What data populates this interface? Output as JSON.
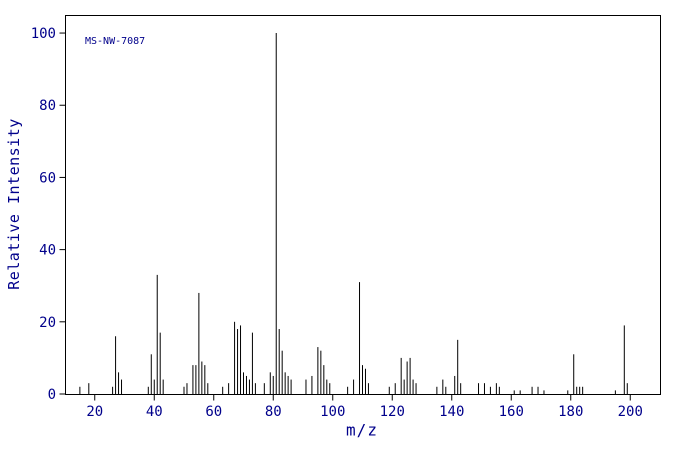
{
  "chart_data": {
    "type": "bar",
    "subtype": "mass-spectrum",
    "annotation": "MS-NW-7087",
    "xlabel": "m/z",
    "ylabel": "Relative Intensity",
    "xlim": [
      10,
      210
    ],
    "ylim": [
      0,
      105
    ],
    "x_ticks": [
      20,
      40,
      60,
      80,
      100,
      120,
      140,
      160,
      180,
      200
    ],
    "y_ticks": [
      0,
      20,
      40,
      60,
      80,
      100
    ],
    "grid": false,
    "legend": false,
    "axis_color": "#000000",
    "text_color": "#00008b",
    "peak_color": "#000000",
    "peaks": [
      [
        15,
        2
      ],
      [
        18,
        3
      ],
      [
        26,
        2
      ],
      [
        27,
        16
      ],
      [
        28,
        6
      ],
      [
        29,
        4
      ],
      [
        38,
        2
      ],
      [
        39,
        11
      ],
      [
        40,
        4
      ],
      [
        41,
        33
      ],
      [
        42,
        17
      ],
      [
        43,
        4
      ],
      [
        50,
        2
      ],
      [
        51,
        3
      ],
      [
        53,
        8
      ],
      [
        54,
        8
      ],
      [
        55,
        28
      ],
      [
        56,
        9
      ],
      [
        57,
        8
      ],
      [
        58,
        3
      ],
      [
        63,
        2
      ],
      [
        65,
        3
      ],
      [
        67,
        20
      ],
      [
        68,
        18
      ],
      [
        69,
        19
      ],
      [
        70,
        6
      ],
      [
        71,
        5
      ],
      [
        72,
        4
      ],
      [
        73,
        17
      ],
      [
        74,
        3
      ],
      [
        77,
        3
      ],
      [
        79,
        6
      ],
      [
        80,
        5
      ],
      [
        81,
        100
      ],
      [
        82,
        18
      ],
      [
        83,
        12
      ],
      [
        84,
        6
      ],
      [
        85,
        5
      ],
      [
        86,
        4
      ],
      [
        91,
        4
      ],
      [
        93,
        5
      ],
      [
        95,
        13
      ],
      [
        96,
        12
      ],
      [
        97,
        8
      ],
      [
        98,
        4
      ],
      [
        99,
        3
      ],
      [
        105,
        2
      ],
      [
        107,
        4
      ],
      [
        109,
        31
      ],
      [
        110,
        8
      ],
      [
        111,
        7
      ],
      [
        112,
        3
      ],
      [
        119,
        2
      ],
      [
        121,
        3
      ],
      [
        123,
        10
      ],
      [
        124,
        4
      ],
      [
        125,
        9
      ],
      [
        126,
        10
      ],
      [
        127,
        4
      ],
      [
        128,
        3
      ],
      [
        135,
        2
      ],
      [
        137,
        4
      ],
      [
        138,
        2
      ],
      [
        141,
        5
      ],
      [
        142,
        15
      ],
      [
        143,
        3
      ],
      [
        149,
        3
      ],
      [
        151,
        3
      ],
      [
        153,
        2
      ],
      [
        155,
        3
      ],
      [
        156,
        2
      ],
      [
        161,
        1
      ],
      [
        163,
        1
      ],
      [
        167,
        2
      ],
      [
        169,
        2
      ],
      [
        171,
        1
      ],
      [
        179,
        1
      ],
      [
        181,
        11
      ],
      [
        182,
        2
      ],
      [
        183,
        2
      ],
      [
        184,
        2
      ],
      [
        195,
        1
      ],
      [
        198,
        19
      ],
      [
        199,
        3
      ]
    ]
  }
}
